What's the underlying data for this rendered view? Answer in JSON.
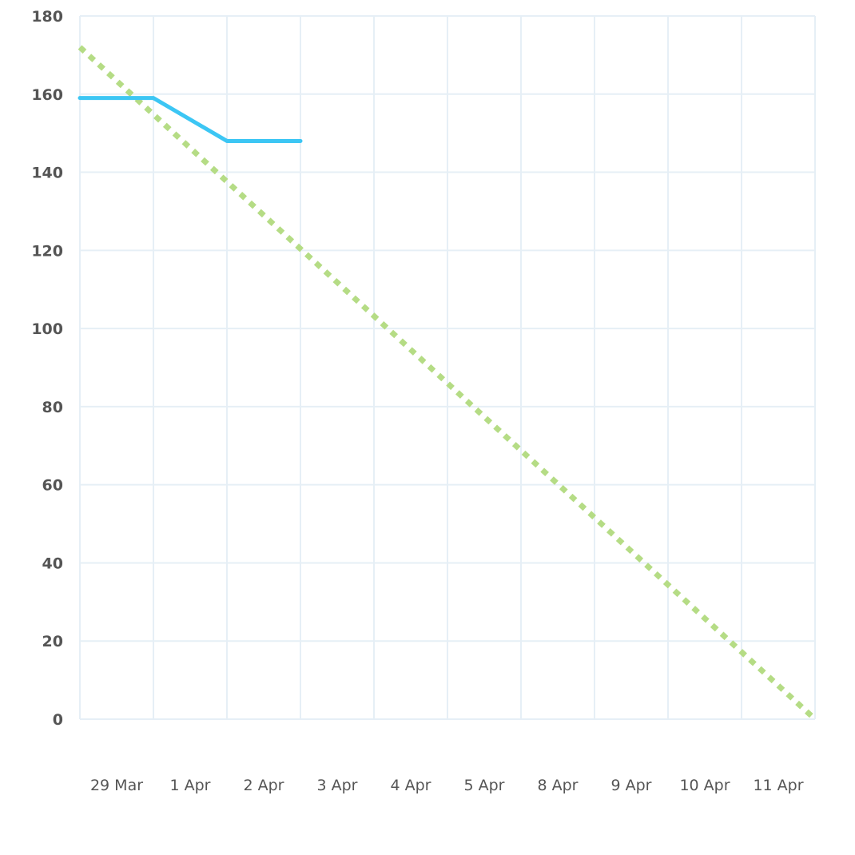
{
  "chart_data": {
    "type": "line",
    "categories": [
      "29 Mar",
      "1 Apr",
      "2 Apr",
      "3 Apr",
      "4 Apr",
      "5 Apr",
      "8 Apr",
      "9 Apr",
      "10 Apr",
      "11 Apr"
    ],
    "y_ticks": [
      0,
      20,
      40,
      60,
      80,
      100,
      120,
      140,
      160,
      180
    ],
    "ylim": [
      0,
      180
    ],
    "grid": true,
    "legend": "none",
    "series": [
      {
        "style": "solid",
        "color": "#3cc6f4",
        "points": [
          {
            "x": 0,
            "y": 159
          },
          {
            "x": 1,
            "y": 159
          },
          {
            "x": 2,
            "y": 148
          },
          {
            "x": 3,
            "y": 148
          }
        ]
      },
      {
        "style": "dotted",
        "color": "#b5dc85",
        "points": [
          {
            "x": 0,
            "y": 172
          },
          {
            "x": 10,
            "y": 0
          }
        ]
      }
    ]
  }
}
